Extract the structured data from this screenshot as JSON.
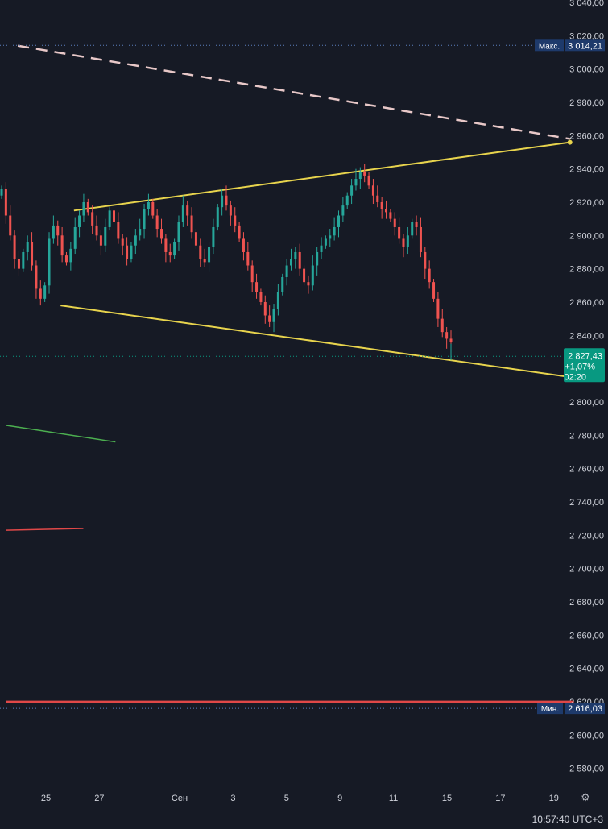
{
  "chart_data": {
    "type": "candlestick",
    "y_axis": {
      "ticks": [
        "3 040,00",
        "3 020,00",
        "3 000,00",
        "2 980,00",
        "2 960,00",
        "2 940,00",
        "2 920,00",
        "2 900,00",
        "2 880,00",
        "2 860,00",
        "2 840,00",
        "2 820,00",
        "2 800,00",
        "2 780,00",
        "2 760,00",
        "2 740,00",
        "2 720,00",
        "2 700,00",
        "2 680,00",
        "2 660,00",
        "2 640,00",
        "2 620,00",
        "2 600,00",
        "2 580,00"
      ],
      "tick_values": [
        3040,
        3020,
        3000,
        2980,
        2960,
        2940,
        2920,
        2900,
        2880,
        2860,
        2840,
        2820,
        2800,
        2780,
        2760,
        2740,
        2720,
        2700,
        2680,
        2660,
        2640,
        2620,
        2600,
        2580
      ],
      "range": [
        2575,
        3042
      ]
    },
    "x_axis": {
      "ticks": [
        "25",
        "27",
        "Сен",
        "3",
        "5",
        "9",
        "11",
        "15",
        "17",
        "19"
      ],
      "tick_index": [
        3,
        7,
        13,
        17,
        21,
        25,
        29,
        33,
        37,
        41
      ]
    },
    "series": [
      {
        "candles_per_day": 11,
        "close": [
          2928,
          2912,
          2900,
          2886,
          2880,
          2890,
          2896,
          2882,
          2868,
          2862,
          2870,
          2898,
          2906,
          2900,
          2888,
          2884,
          2892,
          2905,
          2912,
          2920,
          2914,
          2906,
          2900,
          2894,
          2905,
          2915,
          2908,
          2898,
          2894,
          2886,
          2894,
          2900,
          2904,
          2916,
          2920,
          2912,
          2904,
          2898,
          2890,
          2888,
          2896,
          2908,
          2918,
          2912,
          2902,
          2894,
          2886,
          2884,
          2893,
          2905,
          2917,
          2924,
          2918,
          2912,
          2906,
          2898,
          2890,
          2882,
          2872,
          2866,
          2860,
          2852,
          2848,
          2856,
          2866,
          2875,
          2882,
          2886,
          2890,
          2880,
          2872,
          2870,
          2882,
          2890,
          2894,
          2898,
          2900,
          2905,
          2912,
          2918,
          2924,
          2930,
          2934,
          2938,
          2936,
          2930,
          2924,
          2920,
          2916,
          2914,
          2910,
          2905,
          2898,
          2893,
          2900,
          2908,
          2905,
          2890,
          2880,
          2872,
          2862,
          2850,
          2842,
          2838,
          2836
        ]
      }
    ],
    "last_price": {
      "value": 2827.43,
      "label": "2 827,43",
      "change": "+1,07%",
      "countdown": "02:20"
    },
    "max_marker": {
      "label": "Макс.",
      "value": 3014.21,
      "value_label": "3 014,21"
    },
    "min_marker": {
      "label": "Мин.",
      "value": 2616.03,
      "value_label": "2 616,03"
    },
    "trendlines": [
      {
        "name": "channel-top",
        "color": "#e8d44d",
        "style": "solid",
        "from": {
          "day": 5.1,
          "price": 2915
        },
        "to": {
          "day": 42.2,
          "price": 2956
        }
      },
      {
        "name": "channel-bottom",
        "color": "#e8d44d",
        "style": "solid",
        "from": {
          "day": 4.1,
          "price": 2858
        },
        "to": {
          "day": 42.2,
          "price": 2815
        }
      },
      {
        "name": "dashed-resistance",
        "color": "#e8c8c8",
        "style": "dashed",
        "from": {
          "day": 0.9,
          "price": 3014
        },
        "to": {
          "day": 42.2,
          "price": 2958
        }
      },
      {
        "name": "green-line",
        "color": "#4caf50",
        "style": "solid",
        "from": {
          "day": 0,
          "price": 2786
        },
        "to": {
          "day": 8.2,
          "price": 2776
        }
      },
      {
        "name": "red-line",
        "color": "#e04848",
        "style": "solid",
        "from": {
          "day": 0,
          "price": 2723
        },
        "to": {
          "day": 5.8,
          "price": 2724
        }
      },
      {
        "name": "red-horizontal",
        "color": "#e04848",
        "style": "solid",
        "from": {
          "day": 0,
          "price": 2620
        },
        "to": {
          "day": 42.5,
          "price": 2620
        }
      }
    ],
    "colors": {
      "background": "#161a25",
      "up": "#26a69a",
      "down": "#ef5350",
      "text": "#d1d4dc",
      "grid_dot": "#3a3f4e",
      "last_price_bg": "#089981",
      "max_min_bg": "#1e3a6b"
    },
    "grid": false
  },
  "status_bar": {
    "time": "10:57:40 UTC+3"
  }
}
